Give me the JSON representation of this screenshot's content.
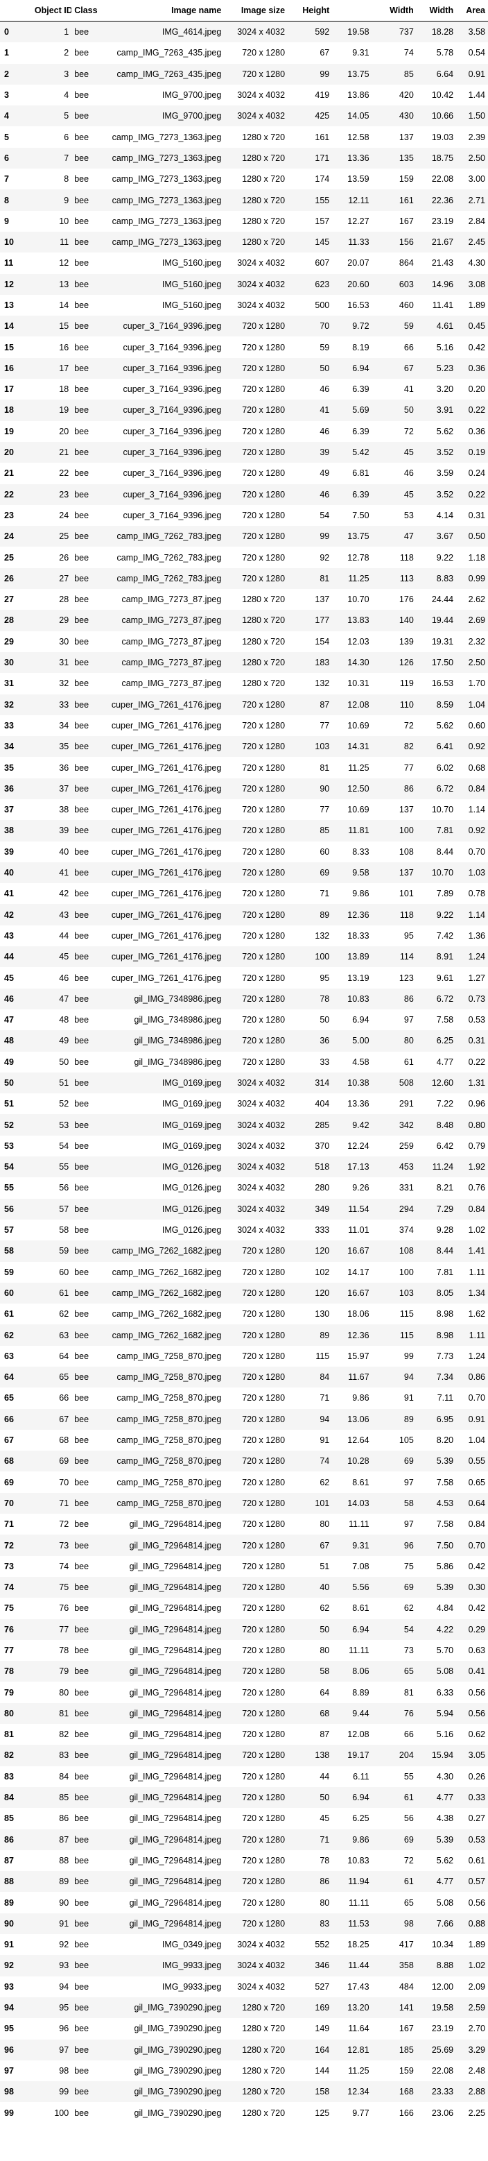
{
  "columns": [
    "",
    "Object ID",
    "Class",
    "Image name",
    "Image size",
    "Height",
    "Width",
    "Width",
    "Area"
  ],
  "column_labels": {
    "index": "",
    "object_id": "Object ID",
    "class": "Class",
    "image_name": "Image name",
    "image_size": "Image size",
    "height_px": "Height",
    "height_pct": "Width",
    "width_px": "Width",
    "width_pct": "Area",
    "area": ""
  },
  "rows": [
    [
      "0",
      "1",
      "bee",
      "IMG_4614.jpeg",
      "3024 x 4032",
      "592",
      "19.58",
      "737",
      "18.28",
      "3.58"
    ],
    [
      "1",
      "2",
      "bee",
      "camp_IMG_7263_435.jpeg",
      "720 x 1280",
      "67",
      "9.31",
      "74",
      "5.78",
      "0.54"
    ],
    [
      "2",
      "3",
      "bee",
      "camp_IMG_7263_435.jpeg",
      "720 x 1280",
      "99",
      "13.75",
      "85",
      "6.64",
      "0.91"
    ],
    [
      "3",
      "4",
      "bee",
      "IMG_9700.jpeg",
      "3024 x 4032",
      "419",
      "13.86",
      "420",
      "10.42",
      "1.44"
    ],
    [
      "4",
      "5",
      "bee",
      "IMG_9700.jpeg",
      "3024 x 4032",
      "425",
      "14.05",
      "430",
      "10.66",
      "1.50"
    ],
    [
      "5",
      "6",
      "bee",
      "camp_IMG_7273_1363.jpeg",
      "1280 x 720",
      "161",
      "12.58",
      "137",
      "19.03",
      "2.39"
    ],
    [
      "6",
      "7",
      "bee",
      "camp_IMG_7273_1363.jpeg",
      "1280 x 720",
      "171",
      "13.36",
      "135",
      "18.75",
      "2.50"
    ],
    [
      "7",
      "8",
      "bee",
      "camp_IMG_7273_1363.jpeg",
      "1280 x 720",
      "174",
      "13.59",
      "159",
      "22.08",
      "3.00"
    ],
    [
      "8",
      "9",
      "bee",
      "camp_IMG_7273_1363.jpeg",
      "1280 x 720",
      "155",
      "12.11",
      "161",
      "22.36",
      "2.71"
    ],
    [
      "9",
      "10",
      "bee",
      "camp_IMG_7273_1363.jpeg",
      "1280 x 720",
      "157",
      "12.27",
      "167",
      "23.19",
      "2.84"
    ],
    [
      "10",
      "11",
      "bee",
      "camp_IMG_7273_1363.jpeg",
      "1280 x 720",
      "145",
      "11.33",
      "156",
      "21.67",
      "2.45"
    ],
    [
      "11",
      "12",
      "bee",
      "IMG_5160.jpeg",
      "3024 x 4032",
      "607",
      "20.07",
      "864",
      "21.43",
      "4.30"
    ],
    [
      "12",
      "13",
      "bee",
      "IMG_5160.jpeg",
      "3024 x 4032",
      "623",
      "20.60",
      "603",
      "14.96",
      "3.08"
    ],
    [
      "13",
      "14",
      "bee",
      "IMG_5160.jpeg",
      "3024 x 4032",
      "500",
      "16.53",
      "460",
      "11.41",
      "1.89"
    ],
    [
      "14",
      "15",
      "bee",
      "cuper_3_7164_9396.jpeg",
      "720 x 1280",
      "70",
      "9.72",
      "59",
      "4.61",
      "0.45"
    ],
    [
      "15",
      "16",
      "bee",
      "cuper_3_7164_9396.jpeg",
      "720 x 1280",
      "59",
      "8.19",
      "66",
      "5.16",
      "0.42"
    ],
    [
      "16",
      "17",
      "bee",
      "cuper_3_7164_9396.jpeg",
      "720 x 1280",
      "50",
      "6.94",
      "67",
      "5.23",
      "0.36"
    ],
    [
      "17",
      "18",
      "bee",
      "cuper_3_7164_9396.jpeg",
      "720 x 1280",
      "46",
      "6.39",
      "41",
      "3.20",
      "0.20"
    ],
    [
      "18",
      "19",
      "bee",
      "cuper_3_7164_9396.jpeg",
      "720 x 1280",
      "41",
      "5.69",
      "50",
      "3.91",
      "0.22"
    ],
    [
      "19",
      "20",
      "bee",
      "cuper_3_7164_9396.jpeg",
      "720 x 1280",
      "46",
      "6.39",
      "72",
      "5.62",
      "0.36"
    ],
    [
      "20",
      "21",
      "bee",
      "cuper_3_7164_9396.jpeg",
      "720 x 1280",
      "39",
      "5.42",
      "45",
      "3.52",
      "0.19"
    ],
    [
      "21",
      "22",
      "bee",
      "cuper_3_7164_9396.jpeg",
      "720 x 1280",
      "49",
      "6.81",
      "46",
      "3.59",
      "0.24"
    ],
    [
      "22",
      "23",
      "bee",
      "cuper_3_7164_9396.jpeg",
      "720 x 1280",
      "46",
      "6.39",
      "45",
      "3.52",
      "0.22"
    ],
    [
      "23",
      "24",
      "bee",
      "cuper_3_7164_9396.jpeg",
      "720 x 1280",
      "54",
      "7.50",
      "53",
      "4.14",
      "0.31"
    ],
    [
      "24",
      "25",
      "bee",
      "camp_IMG_7262_783.jpeg",
      "720 x 1280",
      "99",
      "13.75",
      "47",
      "3.67",
      "0.50"
    ],
    [
      "25",
      "26",
      "bee",
      "camp_IMG_7262_783.jpeg",
      "720 x 1280",
      "92",
      "12.78",
      "118",
      "9.22",
      "1.18"
    ],
    [
      "26",
      "27",
      "bee",
      "camp_IMG_7262_783.jpeg",
      "720 x 1280",
      "81",
      "11.25",
      "113",
      "8.83",
      "0.99"
    ],
    [
      "27",
      "28",
      "bee",
      "camp_IMG_7273_87.jpeg",
      "1280 x 720",
      "137",
      "10.70",
      "176",
      "24.44",
      "2.62"
    ],
    [
      "28",
      "29",
      "bee",
      "camp_IMG_7273_87.jpeg",
      "1280 x 720",
      "177",
      "13.83",
      "140",
      "19.44",
      "2.69"
    ],
    [
      "29",
      "30",
      "bee",
      "camp_IMG_7273_87.jpeg",
      "1280 x 720",
      "154",
      "12.03",
      "139",
      "19.31",
      "2.32"
    ],
    [
      "30",
      "31",
      "bee",
      "camp_IMG_7273_87.jpeg",
      "1280 x 720",
      "183",
      "14.30",
      "126",
      "17.50",
      "2.50"
    ],
    [
      "31",
      "32",
      "bee",
      "camp_IMG_7273_87.jpeg",
      "1280 x 720",
      "132",
      "10.31",
      "119",
      "16.53",
      "1.70"
    ],
    [
      "32",
      "33",
      "bee",
      "cuper_IMG_7261_4176.jpeg",
      "720 x 1280",
      "87",
      "12.08",
      "110",
      "8.59",
      "1.04"
    ],
    [
      "33",
      "34",
      "bee",
      "cuper_IMG_7261_4176.jpeg",
      "720 x 1280",
      "77",
      "10.69",
      "72",
      "5.62",
      "0.60"
    ],
    [
      "34",
      "35",
      "bee",
      "cuper_IMG_7261_4176.jpeg",
      "720 x 1280",
      "103",
      "14.31",
      "82",
      "6.41",
      "0.92"
    ],
    [
      "35",
      "36",
      "bee",
      "cuper_IMG_7261_4176.jpeg",
      "720 x 1280",
      "81",
      "11.25",
      "77",
      "6.02",
      "0.68"
    ],
    [
      "36",
      "37",
      "bee",
      "cuper_IMG_7261_4176.jpeg",
      "720 x 1280",
      "90",
      "12.50",
      "86",
      "6.72",
      "0.84"
    ],
    [
      "37",
      "38",
      "bee",
      "cuper_IMG_7261_4176.jpeg",
      "720 x 1280",
      "77",
      "10.69",
      "137",
      "10.70",
      "1.14"
    ],
    [
      "38",
      "39",
      "bee",
      "cuper_IMG_7261_4176.jpeg",
      "720 x 1280",
      "85",
      "11.81",
      "100",
      "7.81",
      "0.92"
    ],
    [
      "39",
      "40",
      "bee",
      "cuper_IMG_7261_4176.jpeg",
      "720 x 1280",
      "60",
      "8.33",
      "108",
      "8.44",
      "0.70"
    ],
    [
      "40",
      "41",
      "bee",
      "cuper_IMG_7261_4176.jpeg",
      "720 x 1280",
      "69",
      "9.58",
      "137",
      "10.70",
      "1.03"
    ],
    [
      "41",
      "42",
      "bee",
      "cuper_IMG_7261_4176.jpeg",
      "720 x 1280",
      "71",
      "9.86",
      "101",
      "7.89",
      "0.78"
    ],
    [
      "42",
      "43",
      "bee",
      "cuper_IMG_7261_4176.jpeg",
      "720 x 1280",
      "89",
      "12.36",
      "118",
      "9.22",
      "1.14"
    ],
    [
      "43",
      "44",
      "bee",
      "cuper_IMG_7261_4176.jpeg",
      "720 x 1280",
      "132",
      "18.33",
      "95",
      "7.42",
      "1.36"
    ],
    [
      "44",
      "45",
      "bee",
      "cuper_IMG_7261_4176.jpeg",
      "720 x 1280",
      "100",
      "13.89",
      "114",
      "8.91",
      "1.24"
    ],
    [
      "45",
      "46",
      "bee",
      "cuper_IMG_7261_4176.jpeg",
      "720 x 1280",
      "95",
      "13.19",
      "123",
      "9.61",
      "1.27"
    ],
    [
      "46",
      "47",
      "bee",
      "gil_IMG_7348986.jpeg",
      "720 x 1280",
      "78",
      "10.83",
      "86",
      "6.72",
      "0.73"
    ],
    [
      "47",
      "48",
      "bee",
      "gil_IMG_7348986.jpeg",
      "720 x 1280",
      "50",
      "6.94",
      "97",
      "7.58",
      "0.53"
    ],
    [
      "48",
      "49",
      "bee",
      "gil_IMG_7348986.jpeg",
      "720 x 1280",
      "36",
      "5.00",
      "80",
      "6.25",
      "0.31"
    ],
    [
      "49",
      "50",
      "bee",
      "gil_IMG_7348986.jpeg",
      "720 x 1280",
      "33",
      "4.58",
      "61",
      "4.77",
      "0.22"
    ],
    [
      "50",
      "51",
      "bee",
      "IMG_0169.jpeg",
      "3024 x 4032",
      "314",
      "10.38",
      "508",
      "12.60",
      "1.31"
    ],
    [
      "51",
      "52",
      "bee",
      "IMG_0169.jpeg",
      "3024 x 4032",
      "404",
      "13.36",
      "291",
      "7.22",
      "0.96"
    ],
    [
      "52",
      "53",
      "bee",
      "IMG_0169.jpeg",
      "3024 x 4032",
      "285",
      "9.42",
      "342",
      "8.48",
      "0.80"
    ],
    [
      "53",
      "54",
      "bee",
      "IMG_0169.jpeg",
      "3024 x 4032",
      "370",
      "12.24",
      "259",
      "6.42",
      "0.79"
    ],
    [
      "54",
      "55",
      "bee",
      "IMG_0126.jpeg",
      "3024 x 4032",
      "518",
      "17.13",
      "453",
      "11.24",
      "1.92"
    ],
    [
      "55",
      "56",
      "bee",
      "IMG_0126.jpeg",
      "3024 x 4032",
      "280",
      "9.26",
      "331",
      "8.21",
      "0.76"
    ],
    [
      "56",
      "57",
      "bee",
      "IMG_0126.jpeg",
      "3024 x 4032",
      "349",
      "11.54",
      "294",
      "7.29",
      "0.84"
    ],
    [
      "57",
      "58",
      "bee",
      "IMG_0126.jpeg",
      "3024 x 4032",
      "333",
      "11.01",
      "374",
      "9.28",
      "1.02"
    ],
    [
      "58",
      "59",
      "bee",
      "camp_IMG_7262_1682.jpeg",
      "720 x 1280",
      "120",
      "16.67",
      "108",
      "8.44",
      "1.41"
    ],
    [
      "59",
      "60",
      "bee",
      "camp_IMG_7262_1682.jpeg",
      "720 x 1280",
      "102",
      "14.17",
      "100",
      "7.81",
      "1.11"
    ],
    [
      "60",
      "61",
      "bee",
      "camp_IMG_7262_1682.jpeg",
      "720 x 1280",
      "120",
      "16.67",
      "103",
      "8.05",
      "1.34"
    ],
    [
      "61",
      "62",
      "bee",
      "camp_IMG_7262_1682.jpeg",
      "720 x 1280",
      "130",
      "18.06",
      "115",
      "8.98",
      "1.62"
    ],
    [
      "62",
      "63",
      "bee",
      "camp_IMG_7262_1682.jpeg",
      "720 x 1280",
      "89",
      "12.36",
      "115",
      "8.98",
      "1.11"
    ],
    [
      "63",
      "64",
      "bee",
      "camp_IMG_7258_870.jpeg",
      "720 x 1280",
      "115",
      "15.97",
      "99",
      "7.73",
      "1.24"
    ],
    [
      "64",
      "65",
      "bee",
      "camp_IMG_7258_870.jpeg",
      "720 x 1280",
      "84",
      "11.67",
      "94",
      "7.34",
      "0.86"
    ],
    [
      "65",
      "66",
      "bee",
      "camp_IMG_7258_870.jpeg",
      "720 x 1280",
      "71",
      "9.86",
      "91",
      "7.11",
      "0.70"
    ],
    [
      "66",
      "67",
      "bee",
      "camp_IMG_7258_870.jpeg",
      "720 x 1280",
      "94",
      "13.06",
      "89",
      "6.95",
      "0.91"
    ],
    [
      "67",
      "68",
      "bee",
      "camp_IMG_7258_870.jpeg",
      "720 x 1280",
      "91",
      "12.64",
      "105",
      "8.20",
      "1.04"
    ],
    [
      "68",
      "69",
      "bee",
      "camp_IMG_7258_870.jpeg",
      "720 x 1280",
      "74",
      "10.28",
      "69",
      "5.39",
      "0.55"
    ],
    [
      "69",
      "70",
      "bee",
      "camp_IMG_7258_870.jpeg",
      "720 x 1280",
      "62",
      "8.61",
      "97",
      "7.58",
      "0.65"
    ],
    [
      "70",
      "71",
      "bee",
      "camp_IMG_7258_870.jpeg",
      "720 x 1280",
      "101",
      "14.03",
      "58",
      "4.53",
      "0.64"
    ],
    [
      "71",
      "72",
      "bee",
      "gil_IMG_72964814.jpeg",
      "720 x 1280",
      "80",
      "11.11",
      "97",
      "7.58",
      "0.84"
    ],
    [
      "72",
      "73",
      "bee",
      "gil_IMG_72964814.jpeg",
      "720 x 1280",
      "67",
      "9.31",
      "96",
      "7.50",
      "0.70"
    ],
    [
      "73",
      "74",
      "bee",
      "gil_IMG_72964814.jpeg",
      "720 x 1280",
      "51",
      "7.08",
      "75",
      "5.86",
      "0.42"
    ],
    [
      "74",
      "75",
      "bee",
      "gil_IMG_72964814.jpeg",
      "720 x 1280",
      "40",
      "5.56",
      "69",
      "5.39",
      "0.30"
    ],
    [
      "75",
      "76",
      "bee",
      "gil_IMG_72964814.jpeg",
      "720 x 1280",
      "62",
      "8.61",
      "62",
      "4.84",
      "0.42"
    ],
    [
      "76",
      "77",
      "bee",
      "gil_IMG_72964814.jpeg",
      "720 x 1280",
      "50",
      "6.94",
      "54",
      "4.22",
      "0.29"
    ],
    [
      "77",
      "78",
      "bee",
      "gil_IMG_72964814.jpeg",
      "720 x 1280",
      "80",
      "11.11",
      "73",
      "5.70",
      "0.63"
    ],
    [
      "78",
      "79",
      "bee",
      "gil_IMG_72964814.jpeg",
      "720 x 1280",
      "58",
      "8.06",
      "65",
      "5.08",
      "0.41"
    ],
    [
      "79",
      "80",
      "bee",
      "gil_IMG_72964814.jpeg",
      "720 x 1280",
      "64",
      "8.89",
      "81",
      "6.33",
      "0.56"
    ],
    [
      "80",
      "81",
      "bee",
      "gil_IMG_72964814.jpeg",
      "720 x 1280",
      "68",
      "9.44",
      "76",
      "5.94",
      "0.56"
    ],
    [
      "81",
      "82",
      "bee",
      "gil_IMG_72964814.jpeg",
      "720 x 1280",
      "87",
      "12.08",
      "66",
      "5.16",
      "0.62"
    ],
    [
      "82",
      "83",
      "bee",
      "gil_IMG_72964814.jpeg",
      "720 x 1280",
      "138",
      "19.17",
      "204",
      "15.94",
      "3.05"
    ],
    [
      "83",
      "84",
      "bee",
      "gil_IMG_72964814.jpeg",
      "720 x 1280",
      "44",
      "6.11",
      "55",
      "4.30",
      "0.26"
    ],
    [
      "84",
      "85",
      "bee",
      "gil_IMG_72964814.jpeg",
      "720 x 1280",
      "50",
      "6.94",
      "61",
      "4.77",
      "0.33"
    ],
    [
      "85",
      "86",
      "bee",
      "gil_IMG_72964814.jpeg",
      "720 x 1280",
      "45",
      "6.25",
      "56",
      "4.38",
      "0.27"
    ],
    [
      "86",
      "87",
      "bee",
      "gil_IMG_72964814.jpeg",
      "720 x 1280",
      "71",
      "9.86",
      "69",
      "5.39",
      "0.53"
    ],
    [
      "87",
      "88",
      "bee",
      "gil_IMG_72964814.jpeg",
      "720 x 1280",
      "78",
      "10.83",
      "72",
      "5.62",
      "0.61"
    ],
    [
      "88",
      "89",
      "bee",
      "gil_IMG_72964814.jpeg",
      "720 x 1280",
      "86",
      "11.94",
      "61",
      "4.77",
      "0.57"
    ],
    [
      "89",
      "90",
      "bee",
      "gil_IMG_72964814.jpeg",
      "720 x 1280",
      "80",
      "11.11",
      "65",
      "5.08",
      "0.56"
    ],
    [
      "90",
      "91",
      "bee",
      "gil_IMG_72964814.jpeg",
      "720 x 1280",
      "83",
      "11.53",
      "98",
      "7.66",
      "0.88"
    ],
    [
      "91",
      "92",
      "bee",
      "IMG_0349.jpeg",
      "3024 x 4032",
      "552",
      "18.25",
      "417",
      "10.34",
      "1.89"
    ],
    [
      "92",
      "93",
      "bee",
      "IMG_9933.jpeg",
      "3024 x 4032",
      "346",
      "11.44",
      "358",
      "8.88",
      "1.02"
    ],
    [
      "93",
      "94",
      "bee",
      "IMG_9933.jpeg",
      "3024 x 4032",
      "527",
      "17.43",
      "484",
      "12.00",
      "2.09"
    ],
    [
      "94",
      "95",
      "bee",
      "gil_IMG_7390290.jpeg",
      "1280 x 720",
      "169",
      "13.20",
      "141",
      "19.58",
      "2.59"
    ],
    [
      "95",
      "96",
      "bee",
      "gil_IMG_7390290.jpeg",
      "1280 x 720",
      "149",
      "11.64",
      "167",
      "23.19",
      "2.70"
    ],
    [
      "96",
      "97",
      "bee",
      "gil_IMG_7390290.jpeg",
      "1280 x 720",
      "164",
      "12.81",
      "185",
      "25.69",
      "3.29"
    ],
    [
      "97",
      "98",
      "bee",
      "gil_IMG_7390290.jpeg",
      "1280 x 720",
      "144",
      "11.25",
      "159",
      "22.08",
      "2.48"
    ],
    [
      "98",
      "99",
      "bee",
      "gil_IMG_7390290.jpeg",
      "1280 x 720",
      "158",
      "12.34",
      "168",
      "23.33",
      "2.88"
    ],
    [
      "99",
      "100",
      "bee",
      "gil_IMG_7390290.jpeg",
      "1280 x 720",
      "125",
      "9.77",
      "166",
      "23.06",
      "2.25"
    ]
  ]
}
